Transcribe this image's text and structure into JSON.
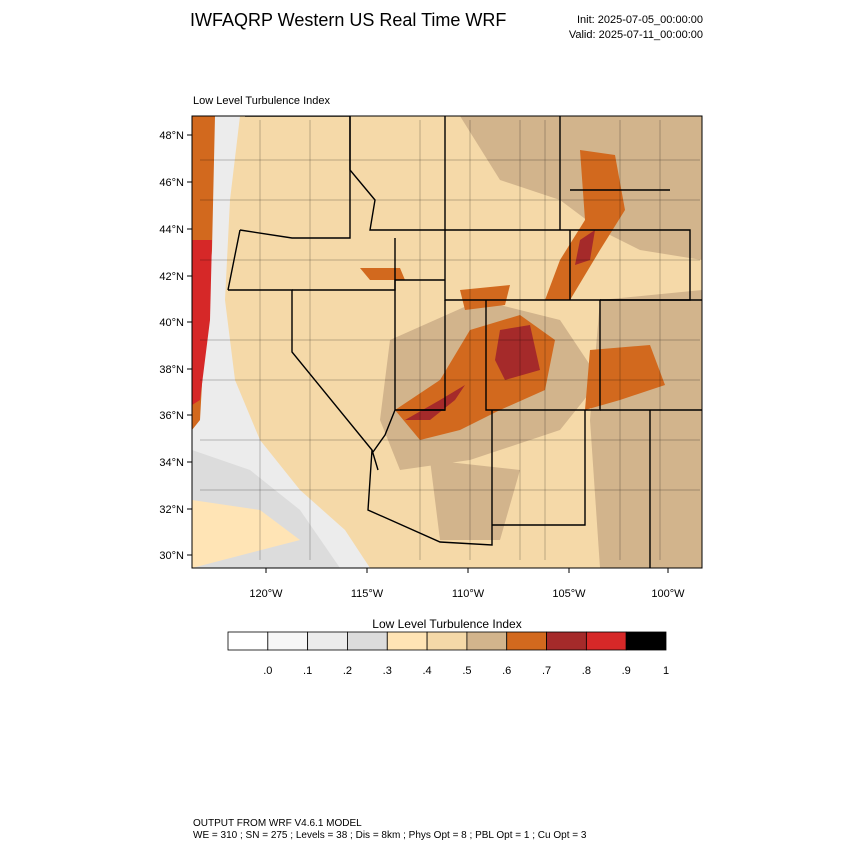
{
  "header": {
    "title": "IWFAQRP Western US Real Time WRF",
    "init": "Init: 2025-07-05_00:00:00",
    "valid": "Valid: 2025-07-11_00:00:00"
  },
  "map": {
    "title": "Low Level Turbulence Index",
    "lat_labels": [
      "48°N",
      "46°N",
      "44°N",
      "42°N",
      "40°N",
      "38°N",
      "36°N",
      "34°N",
      "32°N",
      "30°N"
    ],
    "lon_labels": [
      "120°W",
      "115°W",
      "110°W",
      "105°W",
      "100°W"
    ]
  },
  "colorbar": {
    "title": "Low Level Turbulence Index",
    "colors": [
      "#ffffff",
      "#f7f7f7",
      "#ececec",
      "#dcdcdc",
      "#ffe4b5",
      "#f5d9a8",
      "#d2b48c",
      "#d2691e",
      "#a52a2a",
      "#d62828",
      "#000000"
    ],
    "labels": [
      ".0",
      ".1",
      ".2",
      ".3",
      ".4",
      ".5",
      ".6",
      ".7",
      ".8",
      ".9",
      "1"
    ]
  },
  "footer": {
    "line1": "OUTPUT FROM WRF V4.6.1 MODEL",
    "line2": "WE = 310 ; SN = 275 ; Levels = 38 ; Dis = 8km ; Phys Opt = 8 ; PBL Opt = 1 ; Cu Opt = 3"
  }
}
